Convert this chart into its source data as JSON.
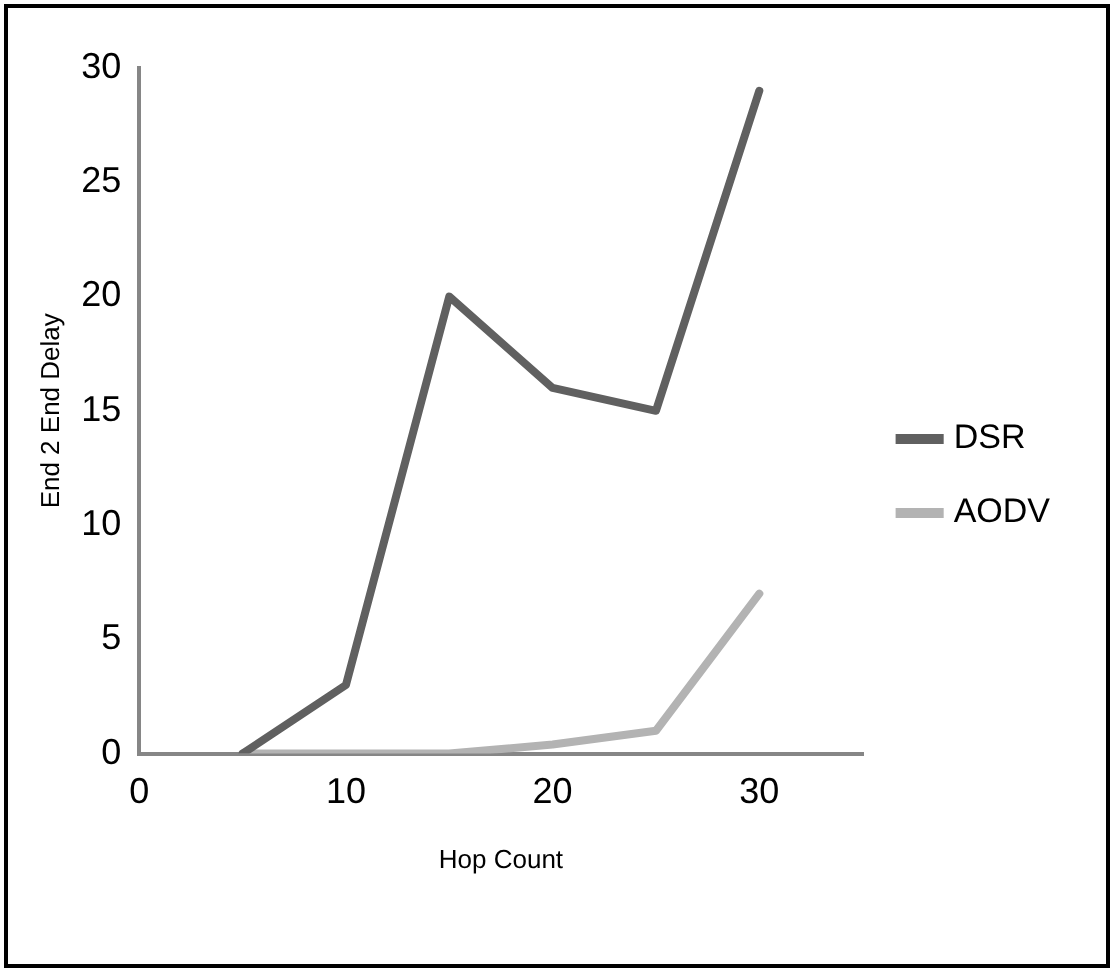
{
  "chart_data": {
    "type": "line",
    "xlabel": "Hop Count",
    "ylabel": "End 2 End Delay",
    "x": [
      5,
      10,
      15,
      20,
      25,
      30
    ],
    "series": [
      {
        "name": "DSR",
        "color": "#606060",
        "values": [
          0,
          3,
          20,
          16,
          15,
          29
        ]
      },
      {
        "name": "AODV",
        "color": "#b3b3b3",
        "values": [
          0,
          0,
          0,
          0.4,
          1,
          7
        ]
      }
    ],
    "xlim": [
      0,
      35
    ],
    "xticks": [
      0,
      10,
      20,
      30
    ],
    "ylim": [
      0,
      30
    ],
    "yticks": [
      0,
      5,
      10,
      15,
      20,
      25,
      30
    ],
    "grid": false,
    "legend": "right",
    "marker": "none",
    "line_style": "solid"
  }
}
